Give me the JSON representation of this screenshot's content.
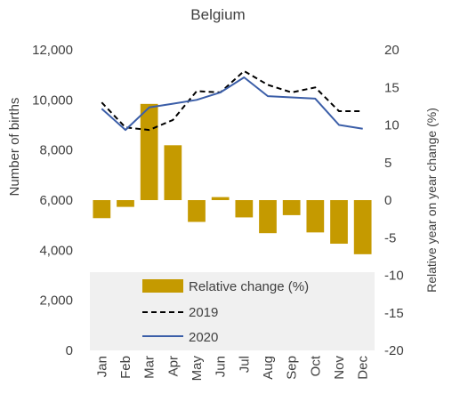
{
  "chart_data": {
    "type": "bar+line",
    "title": "Belgium",
    "categories": [
      "Jan",
      "Feb",
      "Mar",
      "Apr",
      "May",
      "Jun",
      "Jul",
      "Aug",
      "Sep",
      "Oct",
      "Nov",
      "Dec"
    ],
    "ylabel": "Number of births",
    "y2label": "Relative year on year change (%)",
    "ylim": [
      0,
      12000
    ],
    "y2lim": [
      -20,
      20
    ],
    "yticks": [
      "0",
      "2,000",
      "4,000",
      "6,000",
      "8,000",
      "10,000",
      "12,000"
    ],
    "y2ticks": [
      "-20",
      "-15",
      "-10",
      "-5",
      "0",
      "5",
      "10",
      "15",
      "20"
    ],
    "series": [
      {
        "name": "Relative change (%)",
        "type": "bar",
        "axis": "right",
        "color": "#c59a00",
        "values": [
          -2.4,
          -0.9,
          12.8,
          7.3,
          -2.9,
          0.4,
          -2.3,
          -4.4,
          -2.0,
          -4.3,
          -5.8,
          -7.2
        ]
      },
      {
        "name": "2019",
        "type": "line",
        "style": "dashed",
        "axis": "left",
        "color": "#000000",
        "values": [
          9900,
          8900,
          8800,
          9200,
          10350,
          10300,
          11150,
          10600,
          10300,
          10500,
          9550,
          9550
        ]
      },
      {
        "name": "2020",
        "type": "line",
        "style": "solid",
        "axis": "left",
        "color": "#3b5ea8",
        "values": [
          9650,
          8800,
          9700,
          9850,
          10000,
          10300,
          10900,
          10150,
          10100,
          10050,
          9000,
          8850
        ]
      }
    ],
    "legend": {
      "placement": "bottom-inside",
      "background": "#f0f0f0"
    },
    "grid": false
  }
}
